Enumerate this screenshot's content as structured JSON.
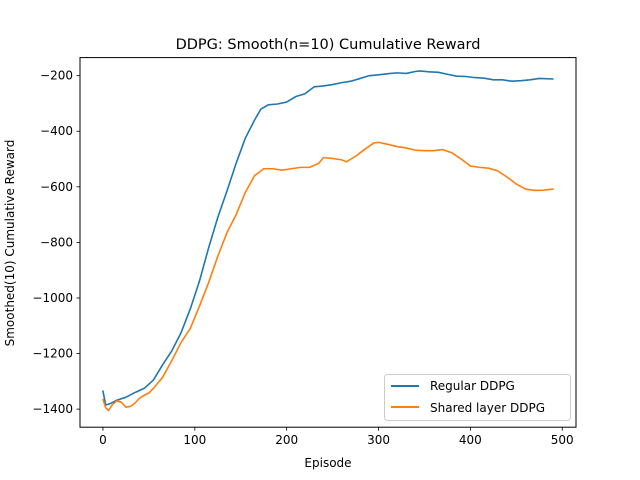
{
  "chart_data": {
    "type": "line",
    "title": "DDPG: Smooth(n=10) Cumulative Reward",
    "xlabel": "Episode",
    "ylabel": "Smoothed(10) Cumulative Reward",
    "xlim": [
      -25,
      515
    ],
    "ylim": [
      -1465,
      -135
    ],
    "xticks": [
      0,
      100,
      200,
      300,
      400,
      500
    ],
    "yticks": [
      -1400,
      -1200,
      -1000,
      -800,
      -600,
      -400,
      -200
    ],
    "grid": false,
    "legend_position": "lower-right",
    "series": [
      {
        "name": "Regular DDPG",
        "color": "#1f77b4",
        "x": [
          0,
          3,
          8,
          15,
          25,
          35,
          45,
          55,
          65,
          75,
          85,
          95,
          105,
          115,
          125,
          135,
          145,
          155,
          165,
          172,
          180,
          190,
          200,
          210,
          220,
          230,
          240,
          250,
          260,
          270,
          280,
          290,
          300,
          310,
          320,
          330,
          340,
          345,
          355,
          365,
          375,
          385,
          395,
          405,
          415,
          425,
          435,
          445,
          455,
          465,
          475,
          490
        ],
        "y": [
          -1335,
          -1385,
          -1380,
          -1368,
          -1357,
          -1340,
          -1325,
          -1295,
          -1240,
          -1190,
          -1125,
          -1040,
          -940,
          -820,
          -710,
          -615,
          -515,
          -425,
          -360,
          -320,
          -305,
          -302,
          -295,
          -275,
          -265,
          -240,
          -237,
          -232,
          -225,
          -220,
          -210,
          -200,
          -197,
          -193,
          -190,
          -192,
          -185,
          -183,
          -186,
          -188,
          -195,
          -202,
          -203,
          -207,
          -209,
          -215,
          -215,
          -220,
          -218,
          -215,
          -210,
          -212
        ]
      },
      {
        "name": "Shared layer DDPG",
        "color": "#ff7f0e",
        "x": [
          0,
          3,
          6,
          10,
          15,
          20,
          25,
          30,
          35,
          40,
          45,
          50,
          55,
          65,
          75,
          85,
          95,
          105,
          115,
          125,
          135,
          145,
          155,
          165,
          175,
          185,
          195,
          205,
          215,
          225,
          235,
          240,
          250,
          260,
          265,
          275,
          285,
          295,
          300,
          310,
          320,
          330,
          340,
          350,
          360,
          370,
          380,
          390,
          400,
          410,
          420,
          430,
          440,
          450,
          460,
          470,
          480,
          490
        ],
        "y": [
          -1365,
          -1395,
          -1405,
          -1385,
          -1370,
          -1375,
          -1393,
          -1390,
          -1378,
          -1360,
          -1350,
          -1342,
          -1325,
          -1285,
          -1225,
          -1160,
          -1110,
          -1030,
          -945,
          -850,
          -765,
          -700,
          -620,
          -560,
          -535,
          -535,
          -540,
          -535,
          -530,
          -530,
          -515,
          -495,
          -498,
          -503,
          -510,
          -490,
          -465,
          -442,
          -440,
          -447,
          -455,
          -460,
          -468,
          -470,
          -470,
          -466,
          -478,
          -500,
          -525,
          -530,
          -533,
          -543,
          -565,
          -590,
          -608,
          -613,
          -612,
          -608
        ]
      }
    ]
  }
}
